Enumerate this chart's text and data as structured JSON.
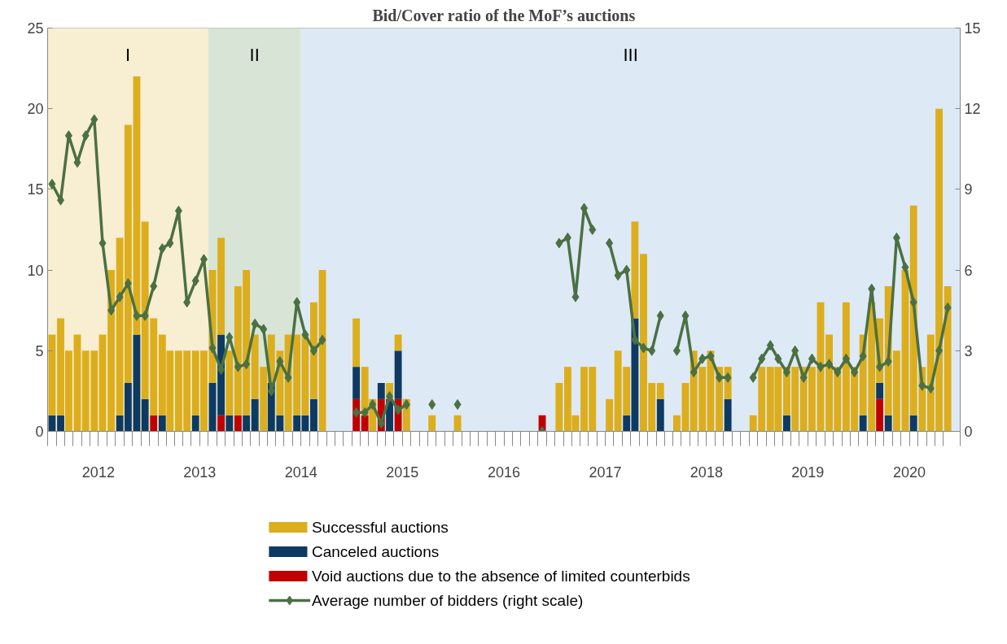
{
  "chart_data": {
    "type": "bar",
    "title": "Bid/Cover ratio of the MoF’s auctions",
    "stacked": true,
    "legend": "bottom",
    "grid": false,
    "marker": "diamond",
    "x": [
      "2012-01",
      "2012-02",
      "2012-03",
      "2012-04",
      "2012-05",
      "2012-06",
      "2012-07",
      "2012-08",
      "2012-09",
      "2012-10",
      "2012-11",
      "2012-12",
      "2013-01",
      "2013-02",
      "2013-03",
      "2013-04",
      "2013-05",
      "2013-06",
      "2013-07",
      "2013-08",
      "2013-09",
      "2013-10",
      "2013-11",
      "2013-12",
      "2014-01",
      "2014-02",
      "2014-03",
      "2014-04",
      "2014-05",
      "2014-06",
      "2014-07",
      "2014-08",
      "2014-09",
      "2014-10",
      "2014-11",
      "2014-12",
      "2015-01",
      "2015-02",
      "2015-03",
      "2015-04",
      "2015-05",
      "2015-06",
      "2015-07",
      "2015-08",
      "2015-09",
      "2015-10",
      "2015-11",
      "2015-12",
      "2016-01",
      "2016-02",
      "2016-03",
      "2016-04",
      "2016-05",
      "2016-06",
      "2016-07",
      "2016-08",
      "2016-09",
      "2016-10",
      "2016-11",
      "2016-12",
      "2017-01",
      "2017-02",
      "2017-03",
      "2017-04",
      "2017-05",
      "2017-06",
      "2017-07",
      "2017-08",
      "2017-09",
      "2017-10",
      "2017-11",
      "2017-12",
      "2018-01",
      "2018-02",
      "2018-03",
      "2018-04",
      "2018-05",
      "2018-06",
      "2018-07",
      "2018-08",
      "2018-09",
      "2018-10",
      "2018-11",
      "2018-12",
      "2019-01",
      "2019-02",
      "2019-03",
      "2019-04",
      "2019-05",
      "2019-06",
      "2019-07",
      "2019-08",
      "2019-09",
      "2019-10",
      "2019-11",
      "2019-12",
      "2020-01",
      "2020-02",
      "2020-03",
      "2020-04",
      "2020-05",
      "2020-06",
      "2020-07",
      "2020-08",
      "2020-09",
      "2020-10",
      "2020-11"
    ],
    "xlim": [
      "2011-12-16",
      "2020-12-16"
    ],
    "xticks": [
      {
        "value": "2012-06-16",
        "label": "2012"
      },
      {
        "value": "2013-06-16",
        "label": "2013"
      },
      {
        "value": "2014-06-16",
        "label": "2014"
      },
      {
        "value": "2015-06-16",
        "label": "2015"
      },
      {
        "value": "2016-06-16",
        "label": "2016"
      },
      {
        "value": "2017-06-16",
        "label": "2017"
      },
      {
        "value": "2018-06-16",
        "label": "2018"
      },
      {
        "value": "2019-06-16",
        "label": "2019"
      },
      {
        "value": "2020-06-16",
        "label": "2020"
      }
    ],
    "ylim": [
      0,
      25
    ],
    "yticks": [
      0,
      5,
      10,
      15,
      20,
      25
    ],
    "y2lim": [
      0,
      15
    ],
    "y2ticks": [
      0,
      3,
      6,
      9,
      12,
      15
    ],
    "bands": [
      {
        "axis": "x",
        "from": "2011-12-16",
        "to": "2013-07-16",
        "label": "I",
        "color": "#f8eed1"
      },
      {
        "axis": "x",
        "from": "2013-07-16",
        "to": "2014-06-16",
        "label": "II",
        "color": "#d8e5d6"
      },
      {
        "axis": "x",
        "from": "2014-06-16",
        "to": "2020-12-16",
        "label": "III",
        "color": "#dde9f4"
      }
    ],
    "series": [
      {
        "name": " Void auctions due to the absence of limited counterbids",
        "color": "#c00000",
        "values": [
          null,
          null,
          null,
          null,
          null,
          null,
          null,
          null,
          null,
          null,
          null,
          null,
          1,
          null,
          null,
          null,
          null,
          null,
          null,
          null,
          1,
          null,
          1,
          null,
          null,
          null,
          null,
          null,
          null,
          null,
          null,
          null,
          null,
          null,
          null,
          null,
          2,
          1,
          null,
          2,
          null,
          2,
          null,
          null,
          null,
          null,
          null,
          null,
          null,
          null,
          null,
          null,
          null,
          null,
          null,
          null,
          null,
          null,
          1,
          null,
          null,
          null,
          null,
          null,
          null,
          null,
          null,
          null,
          null,
          null,
          null,
          null,
          null,
          null,
          null,
          null,
          null,
          null,
          null,
          null,
          null,
          null,
          null,
          null,
          null,
          null,
          null,
          null,
          null,
          null,
          null,
          null,
          null,
          null,
          null,
          null,
          null,
          null,
          2,
          null,
          null,
          null,
          null,
          null,
          null,
          null,
          null
        ]
      },
      {
        "name": "Canceled auctions",
        "color": "#0e3a62",
        "values": [
          1,
          1,
          null,
          null,
          null,
          null,
          null,
          null,
          1,
          3,
          6,
          2,
          null,
          1,
          null,
          null,
          null,
          1,
          null,
          3,
          5,
          1,
          null,
          1,
          2,
          null,
          3,
          1,
          null,
          1,
          1,
          2,
          null,
          null,
          null,
          null,
          2,
          null,
          null,
          1,
          2,
          3,
          null,
          null,
          null,
          null,
          null,
          null,
          null,
          null,
          null,
          null,
          null,
          null,
          null,
          null,
          null,
          null,
          null,
          null,
          null,
          null,
          null,
          null,
          null,
          null,
          null,
          null,
          1,
          7,
          null,
          null,
          2,
          null,
          null,
          null,
          null,
          null,
          null,
          null,
          2,
          null,
          null,
          null,
          null,
          null,
          null,
          1,
          null,
          null,
          null,
          null,
          null,
          null,
          null,
          null,
          1,
          null,
          1,
          1,
          null,
          null,
          1,
          null,
          null,
          null,
          null
        ]
      },
      {
        "name": "Successful auctions",
        "color": "#dcae1d",
        "values": [
          5,
          6,
          5,
          6,
          5,
          5,
          6,
          10,
          11,
          16,
          16,
          11,
          6,
          5,
          5,
          5,
          5,
          4,
          5,
          7,
          6,
          4,
          8,
          9,
          4,
          4,
          3,
          4,
          6,
          5,
          5,
          6,
          10,
          null,
          null,
          null,
          3,
          3,
          2,
          null,
          1,
          1,
          2,
          null,
          null,
          1,
          null,
          null,
          1,
          null,
          null,
          null,
          null,
          null,
          null,
          null,
          null,
          null,
          null,
          null,
          3,
          4,
          1,
          4,
          4,
          null,
          2,
          5,
          3,
          6,
          11,
          3,
          1,
          null,
          1,
          3,
          5,
          4,
          5,
          4,
          2,
          null,
          null,
          1,
          4,
          4,
          4,
          3,
          4,
          4,
          4,
          8,
          6,
          4,
          8,
          4,
          5,
          8,
          4,
          8,
          5,
          10,
          13,
          4,
          6,
          20,
          9
        ]
      },
      {
        "name": "Average number of bidders (right scale)",
        "type": "line",
        "axis": "y2",
        "color": "#4a7043",
        "line_style": "solid",
        "values": [
          9.2,
          8.6,
          11.0,
          10.0,
          11.0,
          11.6,
          7.0,
          4.5,
          5.0,
          5.5,
          4.3,
          4.3,
          5.4,
          6.8,
          7.0,
          8.2,
          4.8,
          5.6,
          6.4,
          3.1,
          2.3,
          3.5,
          2.4,
          2.5,
          4.0,
          3.8,
          1.5,
          2.6,
          2.0,
          4.8,
          3.6,
          3.0,
          3.4,
          null,
          null,
          null,
          0.7,
          0.7,
          1.0,
          0.3,
          1.3,
          0.8,
          1.0,
          null,
          null,
          1.0,
          null,
          null,
          1.0,
          null,
          null,
          null,
          null,
          null,
          null,
          null,
          null,
          null,
          0,
          null,
          7.0,
          7.2,
          5.0,
          8.3,
          7.5,
          null,
          7.0,
          5.8,
          6.0,
          3.4,
          3.1,
          3.0,
          4.3,
          null,
          3.0,
          4.3,
          2.2,
          2.7,
          2.8,
          2.0,
          2.0,
          null,
          null,
          2.0,
          2.7,
          3.2,
          2.7,
          2.2,
          3.0,
          2.0,
          2.7,
          2.4,
          2.5,
          2.2,
          2.7,
          2.2,
          2.8,
          5.3,
          2.4,
          2.6,
          7.2,
          6.1,
          4.8,
          1.7,
          1.6,
          3.0,
          4.6
        ]
      }
    ]
  }
}
